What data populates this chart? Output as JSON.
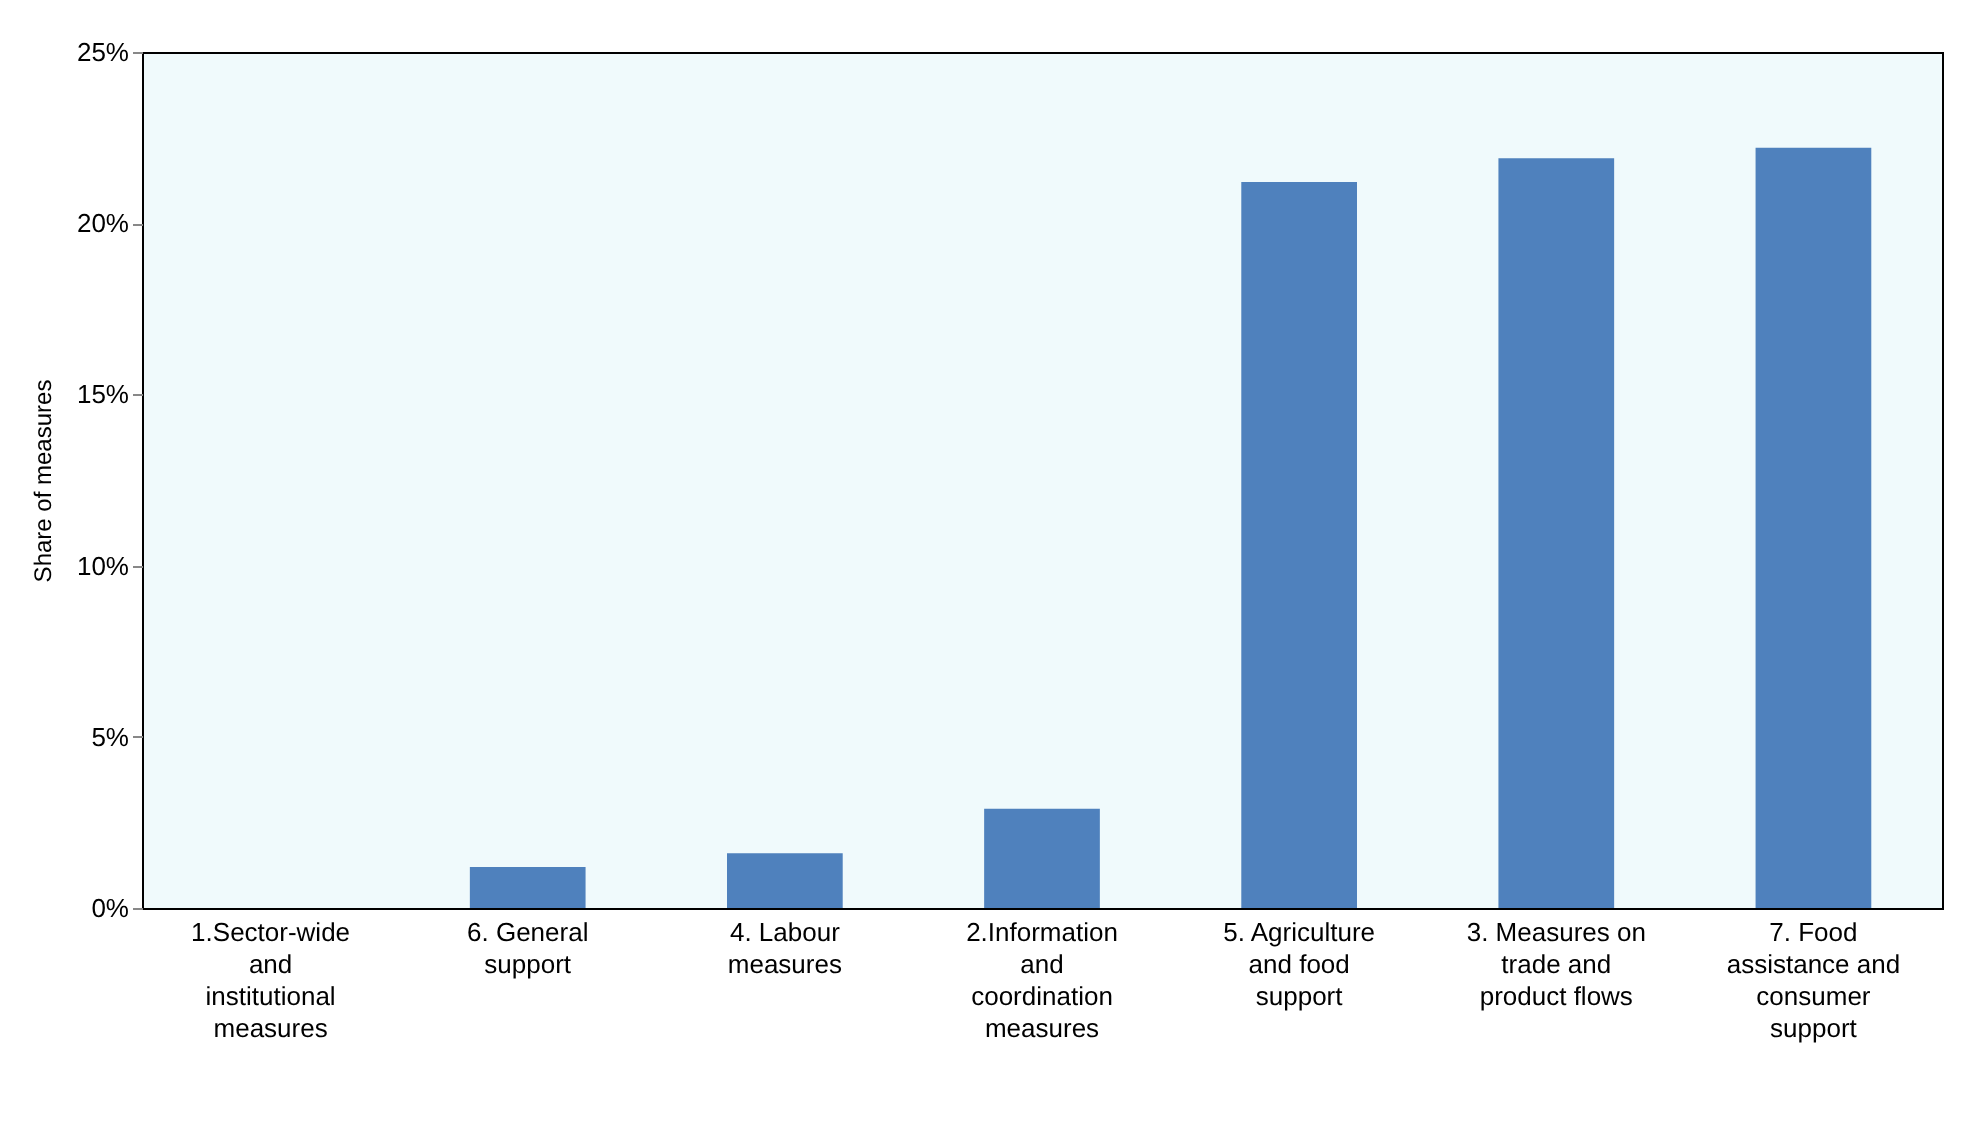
{
  "chart_data": {
    "type": "bar",
    "categories": [
      "1.Sector-wide and institutional measures",
      "6. General support",
      "4. Labour measures",
      "2.Information and coordination measures",
      "5. Agriculture and food support",
      "3. Measures on trade and product flows",
      "7. Food assistance and consumer support"
    ],
    "values": [
      0,
      1.2,
      1.6,
      2.9,
      21.2,
      21.9,
      22.2
    ],
    "color": "#4f81bd",
    "ylabel": "Share of measures",
    "ylim": [
      0,
      25
    ],
    "yticks": [
      {
        "value": 0,
        "label": "0%"
      },
      {
        "value": 5,
        "label": "5%"
      },
      {
        "value": 10,
        "label": "10%"
      },
      {
        "value": 15,
        "label": "15%"
      },
      {
        "value": 20,
        "label": "20%"
      },
      {
        "value": 25,
        "label": "25%"
      }
    ],
    "grid": false
  }
}
